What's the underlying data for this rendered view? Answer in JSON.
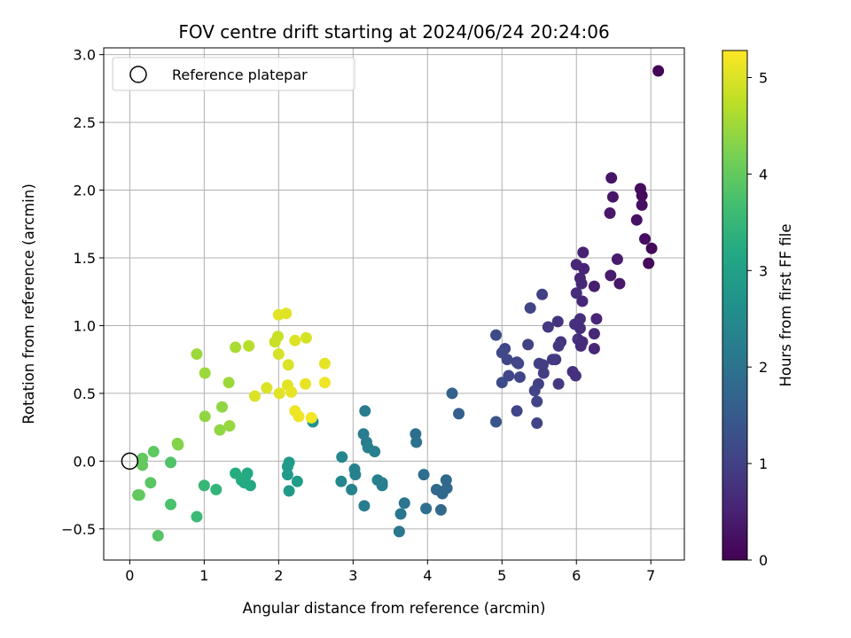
{
  "chart_data": {
    "type": "scatter",
    "title": "FOV centre drift starting at 2024/06/24 20:24:06",
    "xlabel": "Angular distance from reference (arcmin)",
    "ylabel": "Rotation from reference (arcmin)",
    "xlim": [
      -0.35,
      7.45
    ],
    "ylim": [
      -0.73,
      3.05
    ],
    "xticks": [
      0,
      1,
      2,
      3,
      4,
      5,
      6,
      7
    ],
    "yticks": [
      -0.5,
      0.0,
      0.5,
      1.0,
      1.5,
      2.0,
      2.5,
      3.0
    ],
    "ytick_labels": [
      "−0.5",
      "0.0",
      "0.5",
      "1.0",
      "1.5",
      "2.0",
      "2.5",
      "3.0"
    ],
    "grid": true,
    "legend": {
      "position": "top-left",
      "entries": [
        "Reference platepar"
      ]
    },
    "reference_point": {
      "x": 0,
      "y": 0
    },
    "colorbar": {
      "label": "Hours from first FF file",
      "colormap": "viridis",
      "range": [
        0,
        5.28
      ],
      "ticks": [
        0,
        1,
        2,
        3,
        4,
        5
      ]
    },
    "points": [
      [
        7.1,
        2.88,
        0.05
      ],
      [
        6.47,
        2.09,
        0.3
      ],
      [
        6.49,
        1.95,
        0.3
      ],
      [
        6.86,
        2.01,
        0.15
      ],
      [
        6.88,
        1.96,
        0.15
      ],
      [
        6.88,
        1.89,
        0.2
      ],
      [
        6.45,
        1.83,
        0.35
      ],
      [
        6.81,
        1.78,
        0.25
      ],
      [
        6.92,
        1.64,
        0.2
      ],
      [
        7.01,
        1.57,
        0.12
      ],
      [
        6.97,
        1.46,
        0.1
      ],
      [
        6.55,
        1.49,
        0.4
      ],
      [
        6.46,
        1.37,
        0.4
      ],
      [
        6.58,
        1.31,
        0.35
      ],
      [
        6.09,
        1.54,
        0.5
      ],
      [
        6.0,
        1.45,
        0.6
      ],
      [
        6.1,
        1.42,
        0.55
      ],
      [
        6.05,
        1.35,
        0.55
      ],
      [
        6.07,
        1.31,
        0.6
      ],
      [
        6.24,
        1.29,
        0.45
      ],
      [
        6.0,
        1.24,
        0.7
      ],
      [
        6.08,
        1.18,
        0.6
      ],
      [
        5.54,
        1.23,
        1.0
      ],
      [
        5.38,
        1.13,
        1.05
      ],
      [
        6.05,
        1.05,
        0.7
      ],
      [
        6.27,
        1.05,
        0.55
      ],
      [
        5.75,
        1.03,
        0.8
      ],
      [
        5.98,
        1.01,
        0.75
      ],
      [
        6.05,
        0.98,
        0.7
      ],
      [
        5.62,
        0.99,
        0.85
      ],
      [
        6.24,
        0.94,
        0.6
      ],
      [
        6.02,
        0.9,
        0.75
      ],
      [
        5.79,
        0.88,
        0.8
      ],
      [
        6.08,
        0.88,
        0.65
      ],
      [
        5.76,
        0.85,
        0.85
      ],
      [
        5.35,
        0.86,
        1.0
      ],
      [
        5.04,
        0.83,
        1.1
      ],
      [
        5.0,
        0.8,
        1.15
      ],
      [
        4.92,
        0.93,
        1.2
      ],
      [
        5.07,
        0.75,
        1.1
      ],
      [
        5.2,
        0.73,
        1.05
      ],
      [
        5.22,
        0.72,
        1.1
      ],
      [
        5.5,
        0.72,
        1.0
      ],
      [
        5.55,
        0.71,
        0.95
      ],
      [
        5.72,
        0.75,
        0.85
      ],
      [
        5.68,
        0.75,
        0.9
      ],
      [
        5.95,
        0.66,
        0.75
      ],
      [
        6.24,
        0.83,
        0.6
      ],
      [
        6.06,
        0.85,
        0.65
      ],
      [
        5.56,
        0.65,
        0.95
      ],
      [
        5.99,
        0.63,
        0.75
      ],
      [
        5.09,
        0.63,
        1.1
      ],
      [
        5.24,
        0.62,
        1.05
      ],
      [
        5.49,
        0.57,
        1.0
      ],
      [
        5.0,
        0.58,
        1.2
      ],
      [
        5.44,
        0.52,
        1.05
      ],
      [
        5.76,
        0.57,
        0.85
      ],
      [
        5.47,
        0.44,
        1.05
      ],
      [
        5.2,
        0.37,
        1.1
      ],
      [
        5.47,
        0.28,
        1.05
      ],
      [
        4.92,
        0.29,
        1.35
      ],
      [
        4.42,
        0.35,
        1.6
      ],
      [
        4.33,
        0.5,
        1.65
      ],
      [
        3.16,
        0.37,
        2.2
      ],
      [
        3.84,
        0.2,
        1.95
      ],
      [
        3.85,
        0.14,
        1.95
      ],
      [
        3.14,
        0.2,
        2.2
      ],
      [
        3.18,
        0.14,
        2.2
      ],
      [
        3.2,
        0.1,
        2.25
      ],
      [
        3.29,
        0.07,
        2.25
      ],
      [
        2.85,
        0.03,
        2.4
      ],
      [
        2.46,
        0.29,
        2.65
      ],
      [
        3.02,
        -0.06,
        2.3
      ],
      [
        3.03,
        -0.1,
        2.3
      ],
      [
        3.95,
        -0.1,
        1.9
      ],
      [
        4.25,
        -0.14,
        1.8
      ],
      [
        2.84,
        -0.15,
        2.4
      ],
      [
        3.33,
        -0.14,
        2.25
      ],
      [
        3.39,
        -0.16,
        2.25
      ],
      [
        3.39,
        -0.18,
        2.25
      ],
      [
        4.26,
        -0.2,
        1.8
      ],
      [
        4.12,
        -0.21,
        1.8
      ],
      [
        4.2,
        -0.24,
        1.8
      ],
      [
        2.98,
        -0.21,
        2.35
      ],
      [
        3.69,
        -0.31,
        2.05
      ],
      [
        3.15,
        -0.33,
        2.2
      ],
      [
        3.98,
        -0.35,
        1.9
      ],
      [
        4.18,
        -0.36,
        1.8
      ],
      [
        3.64,
        -0.39,
        2.05
      ],
      [
        3.62,
        -0.52,
        2.1
      ],
      [
        2.14,
        -0.01,
        2.85
      ],
      [
        2.12,
        -0.04,
        2.85
      ],
      [
        2.12,
        -0.1,
        2.85
      ],
      [
        2.25,
        -0.15,
        2.9
      ],
      [
        2.14,
        -0.22,
        2.85
      ],
      [
        1.42,
        -0.09,
        3.25
      ],
      [
        1.58,
        -0.09,
        3.2
      ],
      [
        1.55,
        -0.12,
        3.2
      ],
      [
        1.5,
        -0.14,
        3.25
      ],
      [
        1.62,
        -0.18,
        3.2
      ],
      [
        1.54,
        -0.16,
        3.2
      ],
      [
        1.0,
        -0.18,
        3.5
      ],
      [
        1.16,
        -0.21,
        3.45
      ],
      [
        0.28,
        -0.16,
        3.9
      ],
      [
        0.11,
        -0.25,
        4.0
      ],
      [
        0.13,
        -0.25,
        4.0
      ],
      [
        0.55,
        -0.32,
        3.75
      ],
      [
        0.9,
        -0.41,
        3.55
      ],
      [
        0.38,
        -0.55,
        3.85
      ],
      [
        0.55,
        -0.01,
        3.8
      ],
      [
        0.17,
        0.02,
        4.0
      ],
      [
        0.17,
        -0.03,
        4.0
      ],
      [
        0.32,
        0.07,
        3.95
      ],
      [
        0.64,
        0.13,
        4.3
      ],
      [
        0.65,
        0.12,
        4.3
      ],
      [
        1.21,
        0.23,
        4.4
      ],
      [
        1.01,
        0.33,
        4.4
      ],
      [
        1.24,
        0.4,
        4.4
      ],
      [
        1.34,
        0.26,
        4.45
      ],
      [
        1.01,
        0.65,
        4.5
      ],
      [
        1.33,
        0.58,
        4.5
      ],
      [
        0.9,
        0.79,
        4.5
      ],
      [
        1.42,
        0.84,
        4.6
      ],
      [
        1.6,
        0.85,
        4.7
      ],
      [
        1.68,
        0.48,
        5.0
      ],
      [
        1.84,
        0.54,
        5.0
      ],
      [
        1.95,
        0.88,
        4.85
      ],
      [
        1.99,
        0.92,
        4.85
      ],
      [
        2.0,
        0.79,
        4.95
      ],
      [
        2.0,
        1.08,
        5.05
      ],
      [
        2.1,
        1.09,
        5.05
      ],
      [
        2.13,
        0.71,
        5.0
      ],
      [
        2.12,
        0.56,
        5.05
      ],
      [
        2.17,
        0.51,
        5.1
      ],
      [
        2.01,
        0.5,
        5.05
      ],
      [
        2.22,
        0.89,
        5.0
      ],
      [
        2.37,
        0.91,
        4.95
      ],
      [
        2.36,
        0.57,
        5.1
      ],
      [
        2.22,
        0.37,
        5.15
      ],
      [
        2.27,
        0.33,
        5.15
      ],
      [
        2.44,
        0.32,
        5.2
      ],
      [
        2.62,
        0.72,
        5.1
      ],
      [
        2.62,
        0.58,
        5.15
      ]
    ]
  }
}
